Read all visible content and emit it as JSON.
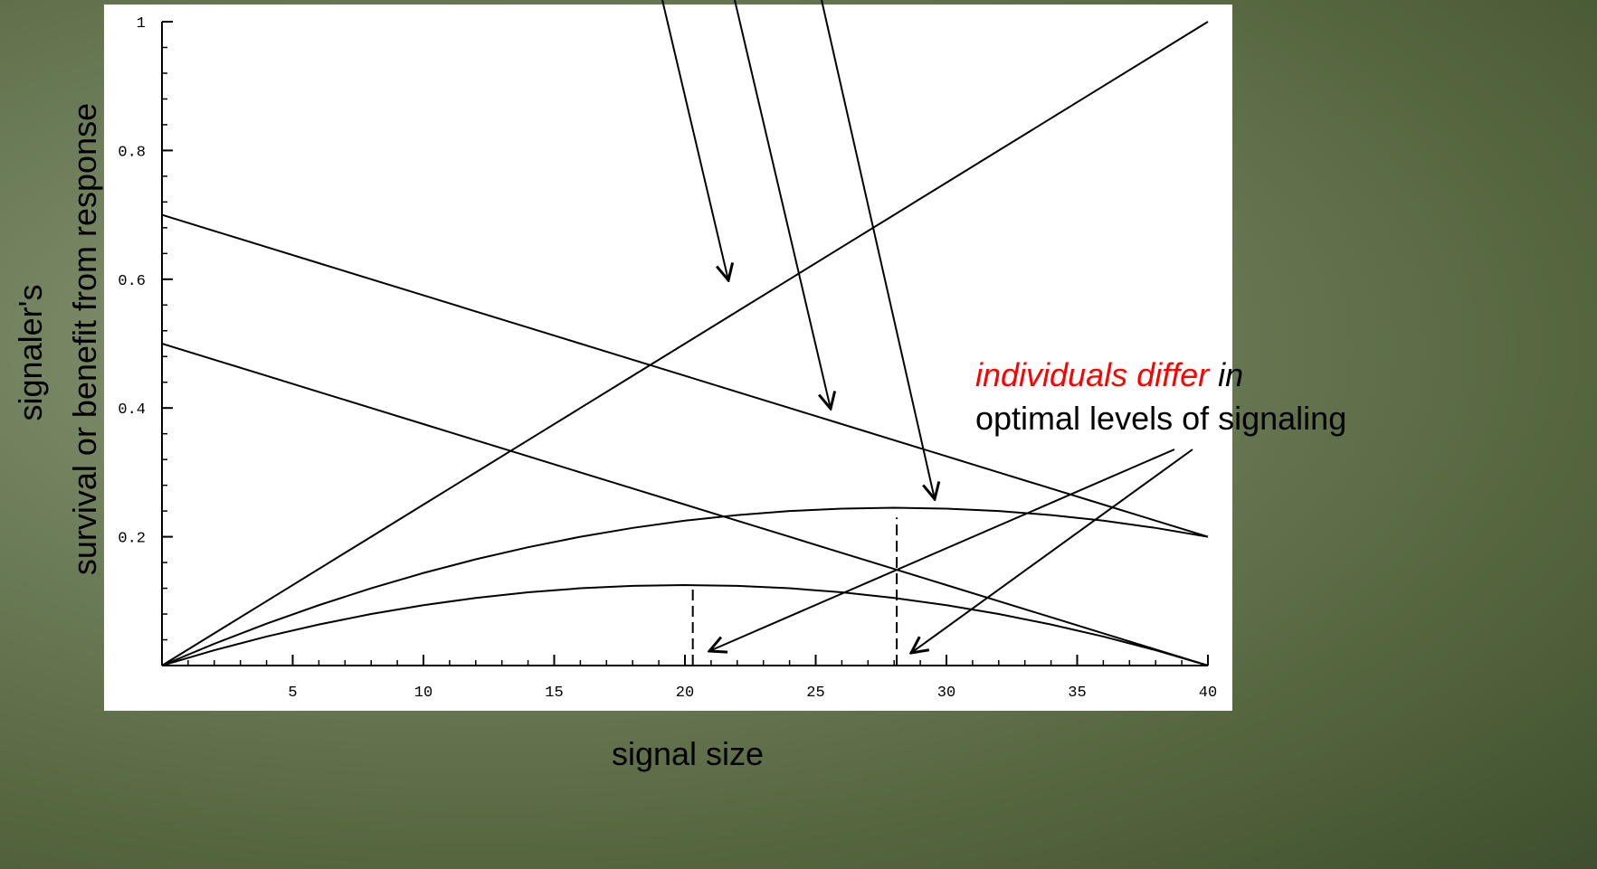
{
  "chart_data": {
    "type": "line",
    "xlabel": "signal size",
    "ylabel": [
      "signaler's",
      "survival or benefit from response"
    ],
    "x": [
      0,
      2,
      4,
      6,
      8,
      10,
      12,
      14,
      16,
      18,
      20,
      22,
      24,
      26,
      28,
      30,
      32,
      34,
      36,
      38,
      40
    ],
    "series": [
      {
        "color": "#000000",
        "values": [
          0,
          0.05,
          0.1,
          0.15,
          0.2,
          0.25,
          0.3,
          0.35,
          0.4,
          0.45,
          0.5,
          0.55,
          0.6,
          0.65,
          0.7,
          0.75,
          0.8,
          0.85,
          0.9,
          0.95,
          1
        ]
      },
      {
        "color": "#000000",
        "values": [
          0.7,
          0.675,
          0.65,
          0.625,
          0.6,
          0.575,
          0.55,
          0.525,
          0.5,
          0.475,
          0.45,
          0.425,
          0.4,
          0.375,
          0.35,
          0.325,
          0.3,
          0.275,
          0.25,
          0.225,
          0.2
        ]
      },
      {
        "color": "#000000",
        "values": [
          0.5,
          0.475,
          0.45,
          0.425,
          0.4,
          0.375,
          0.35,
          0.325,
          0.3,
          0.275,
          0.25,
          0.225,
          0.2,
          0.175,
          0.15,
          0.125,
          0.1,
          0.075,
          0.05,
          0.025,
          0
        ]
      },
      {
        "color": "#000000",
        "values": [
          0,
          0.03375,
          0.065,
          0.09375,
          0.12,
          0.14375,
          0.165,
          0.18375,
          0.2,
          0.21375,
          0.225,
          0.23375,
          0.24,
          0.24375,
          0.245,
          0.24375,
          0.24,
          0.23375,
          0.225,
          0.21375,
          0.2
        ]
      },
      {
        "color": "#000000",
        "values": [
          0,
          0.02375,
          0.045,
          0.06375,
          0.08,
          0.09375,
          0.105,
          0.11375,
          0.12,
          0.12375,
          0.125,
          0.12375,
          0.12,
          0.11375,
          0.105,
          0.09375,
          0.08,
          0.06375,
          0.045,
          0.02375,
          0
        ]
      }
    ],
    "markers": [
      {
        "x": 20.3,
        "y": 0.12
      },
      {
        "x": 28.1,
        "y": 0.23
      }
    ],
    "xlim": [
      0,
      40
    ],
    "ylim": [
      0,
      1
    ],
    "xticks": [
      5,
      10,
      15,
      20,
      25,
      30,
      35,
      40
    ],
    "yticks": [
      0.2,
      0.4,
      0.6,
      0.8,
      1
    ],
    "xminor": 1,
    "yminor": 0.04,
    "annotation": {
      "line1": [
        "individuals differ",
        "in"
      ],
      "line2": "optimal levels of signaling"
    },
    "annotation_colors": [
      "#ff0000",
      "#000000"
    ]
  }
}
